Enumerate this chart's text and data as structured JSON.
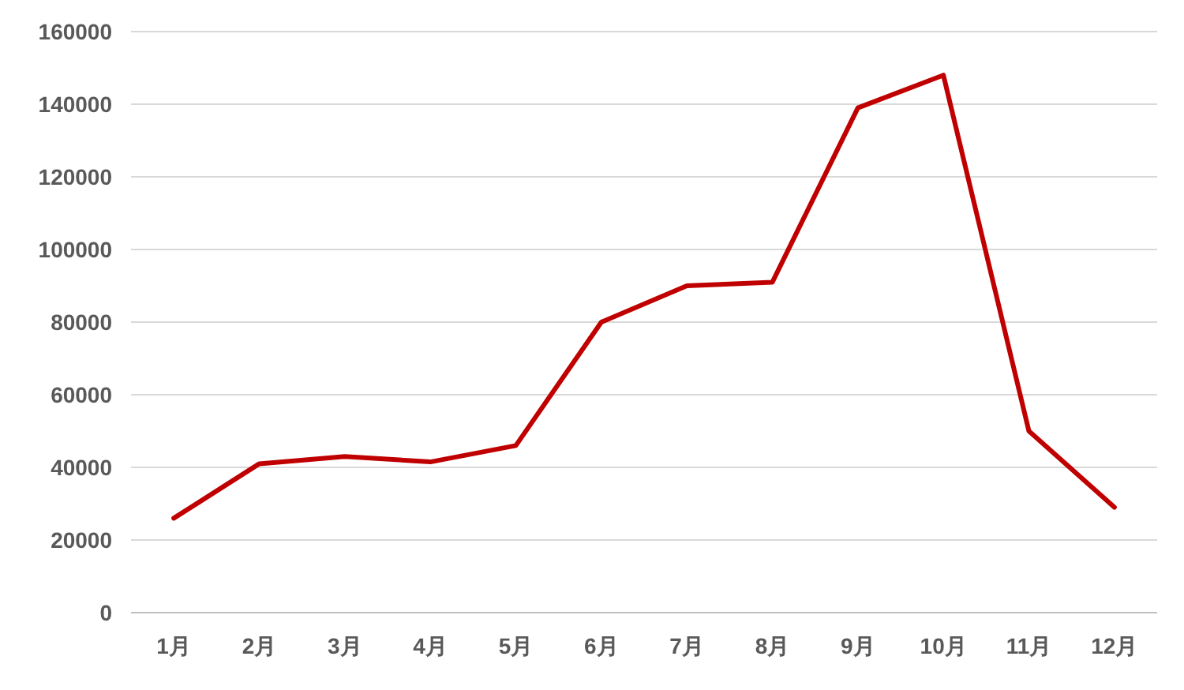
{
  "chart_data": {
    "type": "line",
    "categories": [
      "1月",
      "2月",
      "3月",
      "4月",
      "5月",
      "6月",
      "7月",
      "8月",
      "9月",
      "10月",
      "11月",
      "12月"
    ],
    "series": [
      {
        "color": "#c00000",
        "values": [
          26000,
          41000,
          43000,
          41500,
          46000,
          80000,
          90000,
          91000,
          139000,
          148000,
          50000,
          29000
        ]
      }
    ],
    "ylim": [
      0,
      160000
    ],
    "yticks": [
      0,
      20000,
      40000,
      60000,
      80000,
      100000,
      120000,
      140000,
      160000
    ],
    "grid": "y",
    "marker": "none",
    "line_style": "solid"
  }
}
